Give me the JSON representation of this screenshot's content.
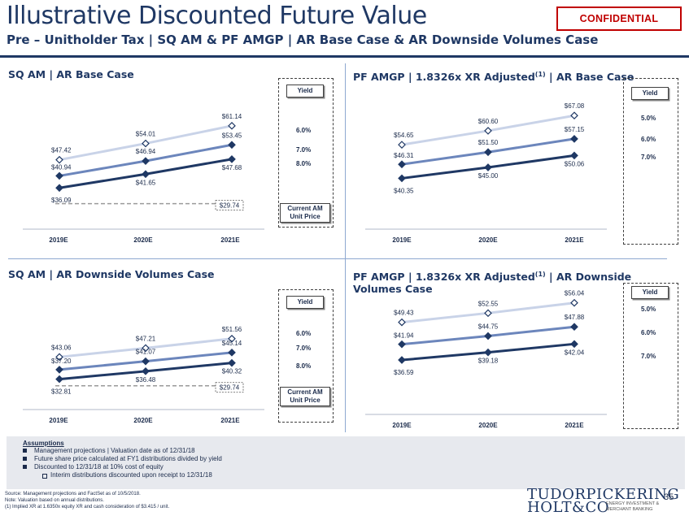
{
  "header": {
    "title": "Illustrative Discounted Future Value",
    "subtitle": "Pre – Unitholder Tax | SQ AM & PF AMGP | AR Base Case & AR Downside Volumes Case",
    "confidential": "CONFIDENTIAL"
  },
  "colors": {
    "navy": "#1f3864",
    "series_6": "#c9d3e8",
    "series_7": "#6c86bc",
    "series_8": "#1f3864",
    "confidential": "#c00000"
  },
  "chart_data": [
    {
      "type": "line",
      "title": "SQ AM | AR Base Case",
      "categories": [
        "2019E",
        "2020E",
        "2021E"
      ],
      "series": [
        {
          "yield": "6.0%",
          "values": [
            47.42,
            54.01,
            61.14
          ],
          "labels": [
            "$47.42",
            "$54.01",
            "$61.14"
          ]
        },
        {
          "yield": "7.0%",
          "values": [
            40.94,
            46.94,
            53.45
          ],
          "labels": [
            "$40.94",
            "$46.94",
            "$53.45"
          ]
        },
        {
          "yield": "8.0%",
          "values": [
            36.09,
            41.65,
            47.68
          ],
          "labels": [
            "$36.09",
            "$41.65",
            "$47.68"
          ]
        }
      ],
      "reference": {
        "value": 29.74,
        "label": "$29.74"
      },
      "legend": {
        "header": "Yield",
        "items": [
          "6.0%",
          "7.0%",
          "8.0%"
        ],
        "current_price_label": "Current AM Unit Price"
      },
      "ylim": [
        26,
        66
      ]
    },
    {
      "type": "line",
      "title": "PF AMGP | 1.8326x XR Adjusted",
      "title_sup": "(1)",
      "title_suffix": " | AR Base Case",
      "categories": [
        "2019E",
        "2020E",
        "2021E"
      ],
      "series": [
        {
          "yield": "5.0%",
          "values": [
            54.65,
            60.6,
            67.08
          ],
          "labels": [
            "$54.65",
            "$60.60",
            "$67.08"
          ]
        },
        {
          "yield": "6.0%",
          "values": [
            46.31,
            51.5,
            57.15
          ],
          "labels": [
            "$46.31",
            "$51.50",
            "$57.15"
          ]
        },
        {
          "yield": "7.0%",
          "values": [
            40.35,
            45.0,
            50.06
          ],
          "labels": [
            "$40.35",
            "$45.00",
            "$50.06"
          ]
        }
      ],
      "legend": {
        "header": "Yield",
        "items": [
          "5.0%",
          "6.0%",
          "7.0%"
        ]
      },
      "ylim": [
        36,
        72
      ]
    },
    {
      "type": "line",
      "title": "SQ AM | AR Downside Volumes Case",
      "categories": [
        "2019E",
        "2020E",
        "2021E"
      ],
      "series": [
        {
          "yield": "6.0%",
          "values": [
            43.06,
            47.21,
            51.56
          ],
          "labels": [
            "$43.06",
            "$47.21",
            "$51.56"
          ]
        },
        {
          "yield": "7.0%",
          "values": [
            37.2,
            41.07,
            45.14
          ],
          "labels": [
            "$37.20",
            "$41.07",
            "$45.14"
          ]
        },
        {
          "yield": "8.0%",
          "values": [
            32.81,
            36.48,
            40.32
          ],
          "labels": [
            "$32.81",
            "$36.48",
            "$40.32"
          ]
        }
      ],
      "reference": {
        "value": 29.74,
        "label": "$29.74"
      },
      "legend": {
        "header": "Yield",
        "items": [
          "6.0%",
          "7.0%",
          "8.0%"
        ],
        "current_price_label": "Current AM Unit Price"
      },
      "ylim": [
        27,
        56
      ]
    },
    {
      "type": "line",
      "title": "PF AMGP | 1.8326x XR Adjusted",
      "title_sup": "(1)",
      "title_suffix": " | AR Downside Volumes Case",
      "categories": [
        "2019E",
        "2020E",
        "2021E"
      ],
      "series": [
        {
          "yield": "5.0%",
          "values": [
            49.43,
            52.55,
            56.04
          ],
          "labels": [
            "$49.43",
            "$52.55",
            "$56.04"
          ]
        },
        {
          "yield": "6.0%",
          "values": [
            41.94,
            44.75,
            47.88
          ],
          "labels": [
            "$41.94",
            "$44.75",
            "$47.88"
          ]
        },
        {
          "yield": "7.0%",
          "values": [
            36.59,
            39.18,
            42.04
          ],
          "labels": [
            "$36.59",
            "$39.18",
            "$42.04"
          ]
        }
      ],
      "legend": {
        "header": "Yield",
        "items": [
          "5.0%",
          "6.0%",
          "7.0%"
        ]
      },
      "ylim": [
        33,
        59
      ]
    }
  ],
  "assumptions": {
    "heading": "Assumptions",
    "items": [
      "Management projections | Valuation date as of 12/31/18",
      "Future share price calculated at FY1 distributions divided by yield",
      "Discounted to 12/31/18 at 10% cost of equity"
    ],
    "sub_item": "Interim distributions discounted upon receipt to 12/31/18"
  },
  "footer": {
    "source": "Source: Management projections and FactSet as of 10/5/2018.",
    "note": "Note: Valuation based on annual distributions.",
    "footnote": "(1)     Implied XR at 1.6350x equity XR and cash consideration of $3.415 / unit.",
    "logo_line1": "TUDORPICKERING",
    "logo_line2": "HOLT&CO",
    "logo_tag": "ENERGY INVESTMENT & MERCHANT BANKING",
    "page": "35"
  }
}
